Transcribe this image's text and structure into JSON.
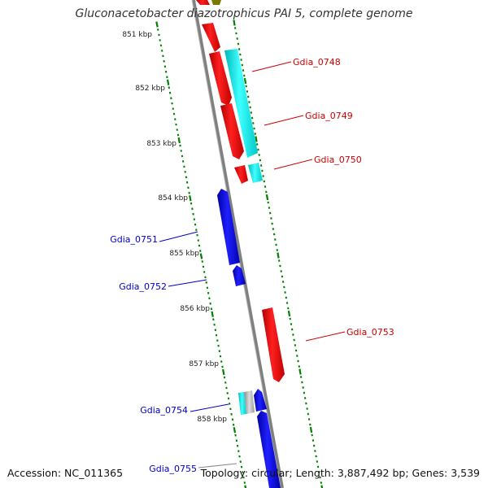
{
  "header": {
    "title": "Gluconacetobacter diazotrophicus PAI 5, complete genome"
  },
  "footer": {
    "accession": "Accession: NC_011365",
    "summary": "Topology: circular; Length: 3,887,492 bp; Genes: 3,539"
  },
  "ruler": {
    "ticks": [
      "851 kbp",
      "852 kbp",
      "853 kbp",
      "854 kbp",
      "855 kbp",
      "856 kbp",
      "857 kbp",
      "858 kbp"
    ]
  },
  "genes": [
    {
      "label": "Gdia_0748",
      "strand": "forward"
    },
    {
      "label": "Gdia_0749",
      "strand": "forward"
    },
    {
      "label": "Gdia_0750",
      "strand": "forward"
    },
    {
      "label": "Gdia_0751",
      "strand": "reverse"
    },
    {
      "label": "Gdia_0752",
      "strand": "reverse"
    },
    {
      "label": "Gdia_0753",
      "strand": "forward"
    },
    {
      "label": "Gdia_0754",
      "strand": "reverse"
    },
    {
      "label": "Gdia_0755",
      "strand": "reverse"
    }
  ],
  "colors": {
    "forward_cds": "#ff0000",
    "reverse_cds": "#0000ff",
    "feature_cyan": "#00ffff",
    "olive": "#7a7a00",
    "backbone": "#808080",
    "tick": "#008000",
    "forward_label": "#cc0000",
    "reverse_label": "#0000cc"
  }
}
